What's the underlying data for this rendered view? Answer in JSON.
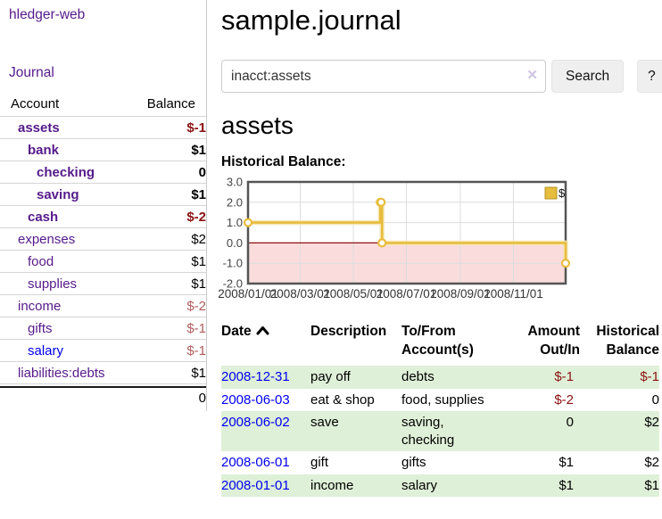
{
  "brand": "hledger-web",
  "nav": {
    "journal": "Journal"
  },
  "sidebar": {
    "headers": {
      "account": "Account",
      "balance": "Balance"
    },
    "accounts": [
      {
        "label": "assets",
        "indent": 1,
        "bold": true,
        "balance": "$-1",
        "neg": "strong"
      },
      {
        "label": "bank",
        "indent": 2,
        "bold": true,
        "balance": "$1"
      },
      {
        "label": "checking",
        "indent": 3,
        "bold": true,
        "balance": "0"
      },
      {
        "label": "saving",
        "indent": 3,
        "bold": true,
        "balance": "$1"
      },
      {
        "label": "cash",
        "indent": 2,
        "bold": true,
        "balance": "$-2",
        "neg": "strong"
      },
      {
        "label": "expenses",
        "indent": 1,
        "bold": false,
        "balance": "$2"
      },
      {
        "label": "food",
        "indent": 2,
        "bold": false,
        "balance": "$1"
      },
      {
        "label": "supplies",
        "indent": 2,
        "bold": false,
        "balance": "$1"
      },
      {
        "label": "income",
        "indent": 1,
        "bold": false,
        "balance": "$-2",
        "neg": "muted"
      },
      {
        "label": "gifts",
        "indent": 2,
        "bold": false,
        "balance": "$-1",
        "neg": "muted"
      },
      {
        "label": "salary",
        "indent": 2,
        "bold": false,
        "balance": "$-1",
        "neg": "muted",
        "link": "blue"
      },
      {
        "label": "liabilities:debts",
        "indent": 1,
        "bold": false,
        "balance": "$1"
      }
    ],
    "total": "0"
  },
  "header": {
    "title": "sample.journal"
  },
  "search": {
    "value": "inacct:assets",
    "clear_icon": "✕",
    "button_label": "Search",
    "help_label": "?"
  },
  "account_page": {
    "title": "assets",
    "chart_label": "Historical Balance:"
  },
  "chart_data": {
    "type": "line",
    "title": "Historical Balance:",
    "step": true,
    "series": [
      {
        "name": "$",
        "color": "#e7bd3e",
        "points": [
          {
            "x": "2008-01-01",
            "y": 1
          },
          {
            "x": "2008-06-01",
            "y": 2
          },
          {
            "x": "2008-06-02",
            "y": 2
          },
          {
            "x": "2008-06-03",
            "y": 0
          },
          {
            "x": "2008-12-31",
            "y": -1
          }
        ]
      }
    ],
    "xlim": [
      "2008-01-01",
      "2008-12-31"
    ],
    "ylim": [
      -2,
      3
    ],
    "yticks": [
      "3.0",
      "2.0",
      "1.0",
      "0.0",
      "-1.0",
      "-2.0"
    ],
    "ytick_values": [
      3,
      2,
      1,
      0,
      -1,
      -2
    ],
    "xticks": [
      "2008/01/01",
      "2008/03/01",
      "2008/05/01",
      "2008/07/01",
      "2008/09/01",
      "2008/11/01"
    ],
    "grid": true,
    "negative_region_color": "#fadcdc",
    "zero_line_color": "#8f0e0e",
    "line_color": "#e7bd3e",
    "legend": {
      "label": "$",
      "position": "top-right"
    }
  },
  "register": {
    "headers": {
      "date": "Date",
      "description": "Description",
      "accounts": "To/From\nAccount(s)",
      "amount": "Amount\nOut/In",
      "balance": "Historical\nBalance"
    },
    "sort_icon": "chevron-up",
    "rows": [
      {
        "date": "2008-12-31",
        "description": "pay off",
        "accounts": "debts",
        "amount": "$-1",
        "amount_neg": true,
        "balance": "$-1",
        "balance_neg": true
      },
      {
        "date": "2008-06-03",
        "description": "eat & shop",
        "accounts": "food, supplies",
        "amount": "$-2",
        "amount_neg": true,
        "balance": "0",
        "balance_neg": false
      },
      {
        "date": "2008-06-02",
        "description": "save",
        "accounts": "saving,\nchecking",
        "amount": "0",
        "amount_neg": false,
        "balance": "$2",
        "balance_neg": false
      },
      {
        "date": "2008-06-01",
        "description": "gift",
        "accounts": "gifts",
        "amount": "$1",
        "amount_neg": false,
        "balance": "$2",
        "balance_neg": false
      },
      {
        "date": "2008-01-01",
        "description": "income",
        "accounts": "salary",
        "amount": "$1",
        "amount_neg": false,
        "balance": "$1",
        "balance_neg": false
      }
    ]
  }
}
